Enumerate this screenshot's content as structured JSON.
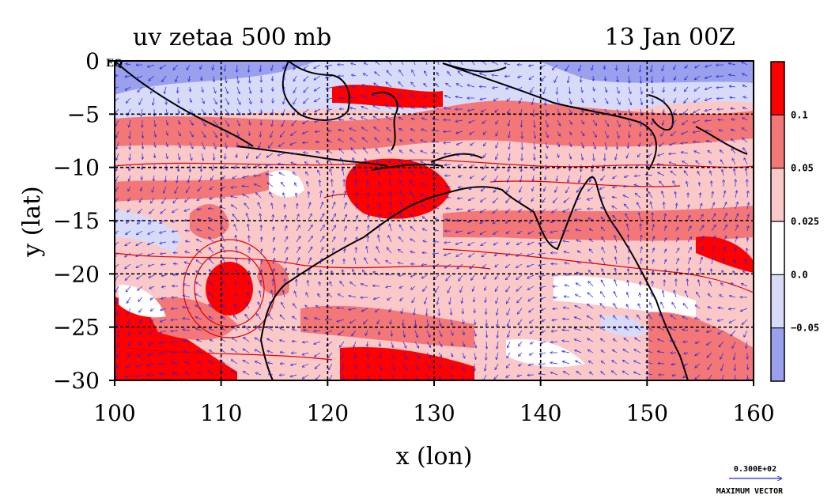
{
  "title": "uv zetaa 500 mb",
  "timestamp": "13 Jan 00Z",
  "x_axis_label": "x (lon)",
  "y_axis_label": "y (lat)",
  "eq_marker": "EQ",
  "x_ticks": [
    {
      "value": 100,
      "label": "100"
    },
    {
      "value": 110,
      "label": "110"
    },
    {
      "value": 120,
      "label": "120"
    },
    {
      "value": 130,
      "label": "130"
    },
    {
      "value": 140,
      "label": "140"
    },
    {
      "value": 150,
      "label": "150"
    },
    {
      "value": 160,
      "label": "160"
    }
  ],
  "y_ticks": [
    {
      "value": 0,
      "label": "0"
    },
    {
      "value": -5,
      "label": "−5"
    },
    {
      "value": -10,
      "label": "−10"
    },
    {
      "value": -15,
      "label": "−15"
    },
    {
      "value": -20,
      "label": "−20"
    },
    {
      "value": -25,
      "label": "−25"
    },
    {
      "value": -30,
      "label": "−30"
    }
  ],
  "colorbar": {
    "labels": [
      "0.1",
      "0.05",
      "0.025",
      "0.0",
      "−0.05"
    ],
    "colors": [
      "#ff0000",
      "#f47777",
      "#fbc8c8",
      "#ffffff",
      "#d8dbf8",
      "#9aa0ec"
    ]
  },
  "max_vector": {
    "value_label": "0.300E+02",
    "caption": "MAXIMUM VECTOR"
  },
  "map": {
    "lon_range": [
      100,
      160
    ],
    "lat_range": [
      -30,
      0
    ],
    "grid": true,
    "vector_color": "#2222ee",
    "coast_color": "#000000",
    "contour_line_color": "#e00000"
  }
}
